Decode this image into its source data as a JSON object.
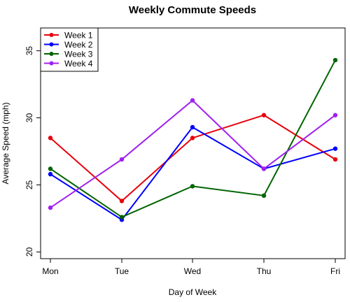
{
  "chart_data": {
    "type": "line",
    "title": "Weekly Commute Speeds",
    "xlabel": "Day of Week",
    "ylabel": "Average Speed (mph)",
    "categories": [
      "Mon",
      "Tue",
      "Wed",
      "Thu",
      "Fri"
    ],
    "ylim": [
      19.5,
      36.7
    ],
    "yticks": [
      20,
      25,
      30,
      35
    ],
    "grid": false,
    "legend_position": "top-left",
    "series": [
      {
        "name": "Week 1",
        "color": "#e8000b",
        "values": [
          28.5,
          23.8,
          28.5,
          30.2,
          26.9
        ]
      },
      {
        "name": "Week 2",
        "color": "#0000ff",
        "values": [
          25.8,
          22.4,
          29.3,
          26.2,
          27.7
        ]
      },
      {
        "name": "Week 3",
        "color": "#006400",
        "values": [
          26.2,
          22.6,
          24.9,
          24.2,
          34.3
        ]
      },
      {
        "name": "Week 4",
        "color": "#a020f0",
        "values": [
          23.3,
          26.9,
          31.3,
          26.2,
          30.2
        ]
      }
    ]
  }
}
